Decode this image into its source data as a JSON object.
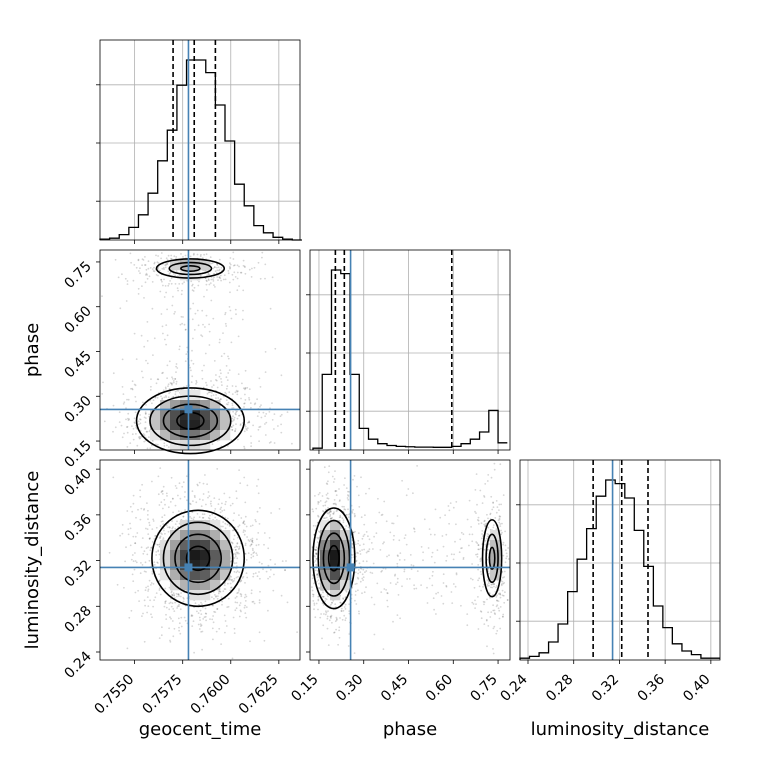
{
  "chart_data": {
    "type": "corner",
    "parameters": [
      "geocent_time",
      "phase",
      "luminosity_distance"
    ],
    "truths": {
      "geocent_time": 0.7578,
      "phase": 0.256,
      "luminosity_distance": 0.314
    },
    "quantiles": {
      "geocent_time": [
        0.757,
        0.7581,
        0.7592
      ],
      "phase": [
        0.205,
        0.235,
        0.595
      ],
      "luminosity_distance": [
        0.297,
        0.322,
        0.345
      ]
    },
    "ranges": {
      "geocent_time": [
        0.7532,
        0.7636
      ],
      "phase": [
        0.12,
        0.79
      ],
      "luminosity_distance": [
        0.233,
        0.408
      ]
    },
    "ticks": {
      "geocent_time": [
        "0.7550",
        "0.7575",
        "0.7600",
        "0.7625"
      ],
      "phase": [
        "0.15",
        "0.30",
        "0.45",
        "0.60",
        "0.75"
      ],
      "luminosity_distance": [
        "0.24",
        "0.28",
        "0.32",
        "0.36",
        "0.40"
      ]
    },
    "histograms": {
      "geocent_time": {
        "edges": [
          0.7532,
          0.7537,
          0.7542,
          0.7547,
          0.7552,
          0.7557,
          0.7562,
          0.7567,
          0.7572,
          0.7577,
          0.7582,
          0.7587,
          0.7592,
          0.7597,
          0.7602,
          0.7607,
          0.7612,
          0.7617,
          0.7622,
          0.7627,
          0.7632,
          0.7637
        ],
        "counts": [
          0.005,
          0.01,
          0.03,
          0.07,
          0.14,
          0.26,
          0.44,
          0.61,
          0.86,
          1.0,
          1.0,
          0.93,
          0.75,
          0.55,
          0.31,
          0.19,
          0.08,
          0.04,
          0.015,
          0.005,
          0.0
        ]
      },
      "phase": {
        "edges": [
          0.13,
          0.161,
          0.192,
          0.223,
          0.254,
          0.285,
          0.316,
          0.347,
          0.378,
          0.409,
          0.44,
          0.471,
          0.502,
          0.533,
          0.564,
          0.595,
          0.626,
          0.657,
          0.688,
          0.719,
          0.75,
          0.781
        ],
        "counts": [
          0.01,
          0.42,
          1.0,
          0.98,
          0.42,
          0.12,
          0.06,
          0.035,
          0.025,
          0.02,
          0.018,
          0.016,
          0.016,
          0.015,
          0.015,
          0.02,
          0.035,
          0.06,
          0.1,
          0.22,
          0.04
        ]
      },
      "luminosity_distance": {
        "edges": [
          0.233,
          0.2413,
          0.2497,
          0.258,
          0.2663,
          0.2747,
          0.283,
          0.2913,
          0.2997,
          0.308,
          0.3163,
          0.3247,
          0.333,
          0.3413,
          0.3497,
          0.358,
          0.3663,
          0.3747,
          0.383,
          0.3913,
          0.3997,
          0.408
        ],
        "counts": [
          0.01,
          0.02,
          0.04,
          0.1,
          0.2,
          0.38,
          0.56,
          0.73,
          0.91,
          1.0,
          0.98,
          0.9,
          0.72,
          0.52,
          0.3,
          0.18,
          0.09,
          0.05,
          0.03,
          0.01,
          0.01
        ]
      }
    },
    "pairs": [
      {
        "x": "geocent_time",
        "y": "phase",
        "modes": [
          {
            "cx": 0.7579,
            "cy": 0.218,
            "sx": 0.0014,
            "sy": 0.055
          },
          {
            "cx": 0.7579,
            "cy": 0.728,
            "sx": 0.0011,
            "sy": 0.02
          }
        ]
      },
      {
        "x": "geocent_time",
        "y": "luminosity_distance",
        "modes": [
          {
            "cx": 0.7583,
            "cy": 0.322,
            "sx": 0.0012,
            "sy": 0.021
          }
        ]
      },
      {
        "x": "phase",
        "y": "luminosity_distance",
        "modes": [
          {
            "cx": 0.2,
            "cy": 0.322,
            "sx": 0.035,
            "sy": 0.022
          },
          {
            "cx": 0.73,
            "cy": 0.322,
            "sx": 0.02,
            "sy": 0.021
          }
        ]
      }
    ],
    "xlabels": [
      "geocent_time",
      "phase",
      "luminosity_distance"
    ],
    "ylabels": [
      "",
      "phase",
      "luminosity_distance"
    ]
  },
  "colors": {
    "truth": "#4682b4",
    "line": "#000000",
    "grid": "#b0b0b0"
  }
}
